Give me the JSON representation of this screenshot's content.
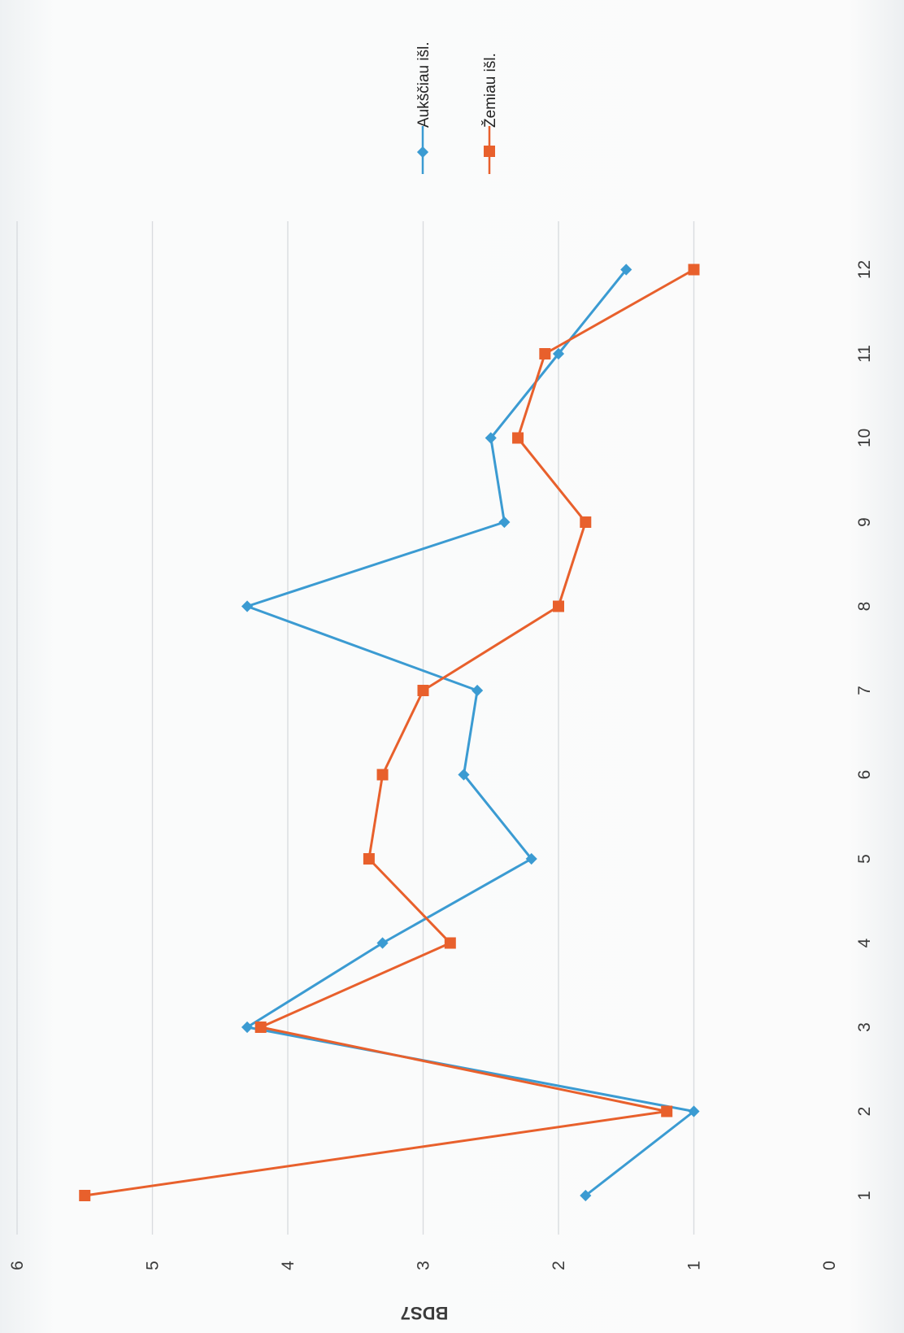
{
  "chart_data": {
    "type": "line",
    "title": "",
    "xlabel": "",
    "ylabel": "BDS7",
    "ylim": [
      0,
      6
    ],
    "yticks": [
      "0",
      "1",
      "2",
      "3",
      "4",
      "5",
      "6"
    ],
    "x": [
      "1",
      "2",
      "3",
      "4",
      "5",
      "6",
      "7",
      "8",
      "9",
      "10",
      "11",
      "12"
    ],
    "grid": true,
    "legend_position": "top-right",
    "orientation": "rotated 90 degrees clockwise",
    "series": [
      {
        "name": "Aukščiau išl.",
        "color": "#3b9bd2",
        "marker": "diamond",
        "values": [
          1.8,
          1.0,
          4.3,
          3.3,
          2.2,
          2.7,
          2.6,
          4.3,
          2.4,
          2.5,
          2.0,
          1.5
        ]
      },
      {
        "name": "Žemiau išl.",
        "color": "#e8602c",
        "marker": "square",
        "values": [
          5.5,
          1.2,
          4.2,
          2.8,
          3.4,
          3.3,
          3.0,
          2.0,
          1.8,
          2.3,
          2.1,
          1.0
        ]
      }
    ]
  }
}
